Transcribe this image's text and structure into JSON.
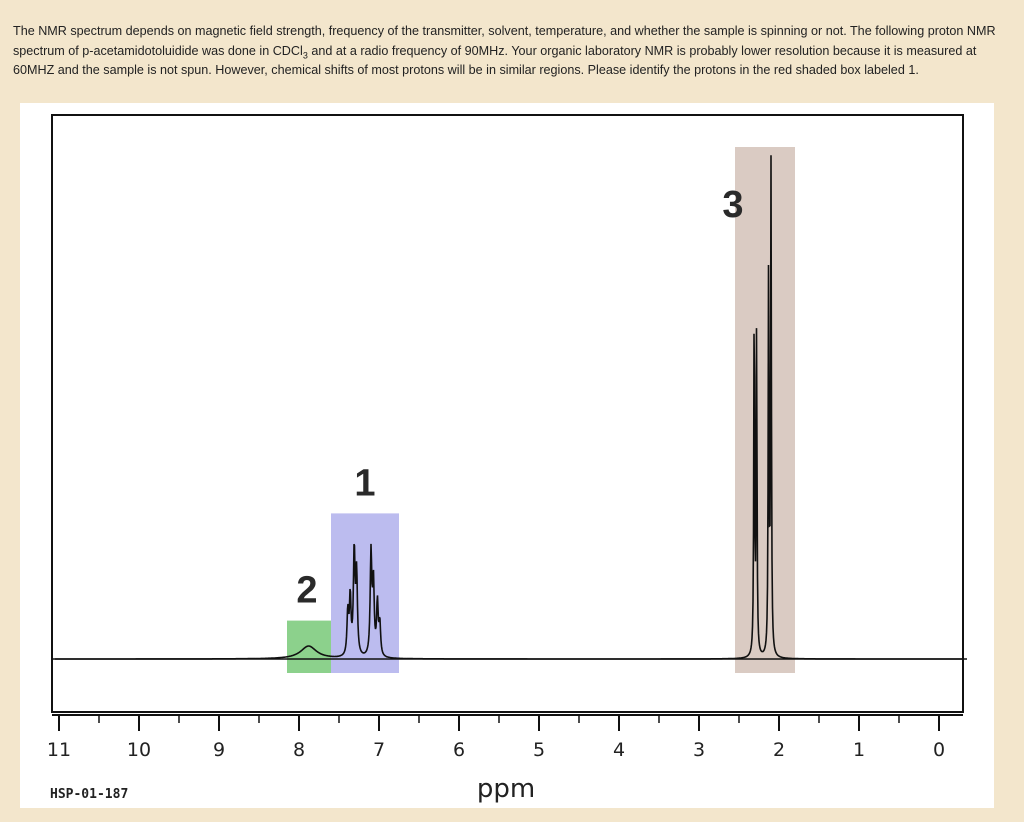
{
  "question": {
    "text_before": "The NMR spectrum depends on magnetic field strength, frequency of the transmitter, solvent, temperature, and whether the sample is spinning or not. The following proton NMR spectrum of  p-acetamidotoluidide was done in CDCl",
    "subscript": "3",
    "text_after": " and at a radio frequency of 90MHz. Your organic laboratory NMR is probably lower resolution because it is measured at 60MHZ and the sample is not spun. However, chemical shifts of most protons will be in similar regions. Please identify the protons in the red shaded box labeled 1."
  },
  "chart_data": {
    "type": "line",
    "title": "",
    "xlabel": "ppm",
    "ylabel": "",
    "xlim": [
      11,
      0
    ],
    "x_reversed": true,
    "ticks": [
      "11",
      "10",
      "9",
      "8",
      "7",
      "6",
      "5",
      "4",
      "3",
      "2",
      "1",
      "0"
    ],
    "minor_ticks_ppm": [
      10.5,
      9.5,
      8.5,
      7.5,
      6.5,
      5.5,
      4.5,
      3.5,
      2.5,
      1.5,
      0.5
    ],
    "baseline_intensity": 0,
    "series": [
      {
        "peaks": [
          {
            "ppm": 7.88,
            "height": 0.08,
            "width": 0.12
          },
          {
            "ppm": 7.39,
            "height": 0.27,
            "width": 0.012
          },
          {
            "ppm": 7.36,
            "height": 0.36,
            "width": 0.012
          },
          {
            "ppm": 7.31,
            "height": 0.65,
            "width": 0.012
          },
          {
            "ppm": 7.28,
            "height": 0.5,
            "width": 0.012
          },
          {
            "ppm": 7.1,
            "height": 0.64,
            "width": 0.012
          },
          {
            "ppm": 7.07,
            "height": 0.45,
            "width": 0.012
          },
          {
            "ppm": 7.02,
            "height": 0.33,
            "width": 0.012
          },
          {
            "ppm": 6.99,
            "height": 0.2,
            "width": 0.012
          },
          {
            "ppm": 2.31,
            "height": 2.3,
            "width": 0.006
          },
          {
            "ppm": 2.28,
            "height": 2.05,
            "width": 0.006
          },
          {
            "ppm": 2.13,
            "height": 2.45,
            "width": 0.006
          },
          {
            "ppm": 2.1,
            "height": 3.05,
            "width": 0.006
          }
        ]
      }
    ],
    "regions": [
      {
        "label": "1",
        "from_ppm": 7.6,
        "to_ppm": 6.75,
        "top": 0.91,
        "color": "#b8b8ee"
      },
      {
        "label": "2",
        "from_ppm": 8.15,
        "to_ppm": 7.6,
        "top": 0.24,
        "color": "#86cf86"
      },
      {
        "label": "3",
        "from_ppm": 2.55,
        "to_ppm": 1.8,
        "top": 3.2,
        "color": "#d8c8c0"
      }
    ],
    "annotations": [
      "HSP-01-187"
    ]
  }
}
